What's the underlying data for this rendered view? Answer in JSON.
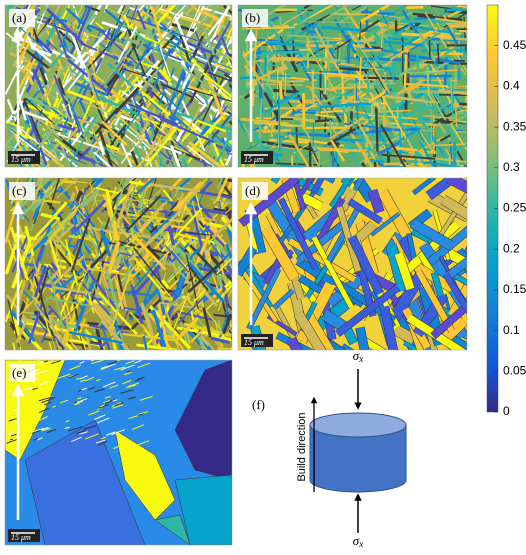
{
  "panels": [
    {
      "label": "(a)",
      "scale_bar": "15 μm"
    },
    {
      "label": "(b)",
      "scale_bar": "15 μm"
    },
    {
      "label": "(c)"
    },
    {
      "label": "(d)",
      "scale_bar": "15 μm"
    },
    {
      "label": "(e)",
      "scale_bar": "15 μm"
    }
  ],
  "diagram": {
    "label": "(f)",
    "axis_label": "Build direction",
    "load_top": {
      "symbol": "σ",
      "subscript": "x"
    },
    "load_bottom": {
      "symbol": "σ",
      "subscript": "x"
    }
  },
  "colorbar": {
    "lim": [
      0,
      0.5
    ],
    "ticks": [
      0,
      0.05,
      0.1,
      0.15,
      0.2,
      0.25,
      0.3,
      0.35,
      0.4,
      0.45
    ]
  }
}
